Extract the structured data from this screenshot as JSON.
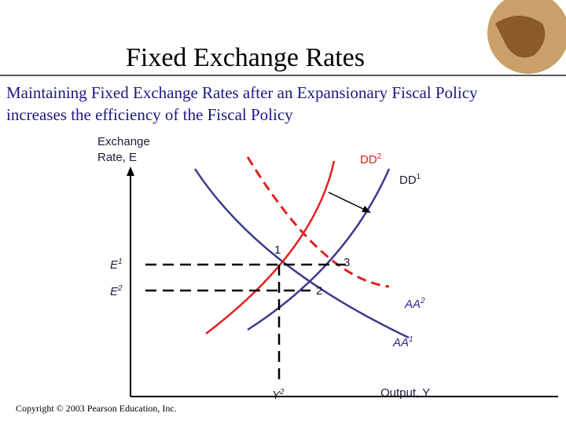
{
  "header": {
    "title": "Fixed Exchange Rates",
    "subtitle_lines": [
      "Maintaining Fixed Exchange Rates after an Expansionary Fiscal Policy",
      "increases the efficiency of the Fiscal Policy"
    ]
  },
  "diagram": {
    "y_axis_label": [
      "Exchange",
      "Rate, E"
    ],
    "x_axis_label": "Output, Y",
    "labels": {
      "dd2": {
        "base": "DD",
        "sup": "2"
      },
      "dd1": {
        "base": "DD",
        "sup": "1"
      },
      "aa2": {
        "base": "AA",
        "sup": "2"
      },
      "aa1": {
        "base": "AA",
        "sup": "1"
      },
      "e1": {
        "base": "E",
        "sup": "1"
      },
      "e2": {
        "base": "E",
        "sup": "2"
      },
      "y2": {
        "base": "Y",
        "sup": "2"
      },
      "p1": "1",
      "p2": "2",
      "p3": "3"
    }
  },
  "footer": {
    "copyright": "Copyright © 2003 Pearson Education, Inc."
  }
}
